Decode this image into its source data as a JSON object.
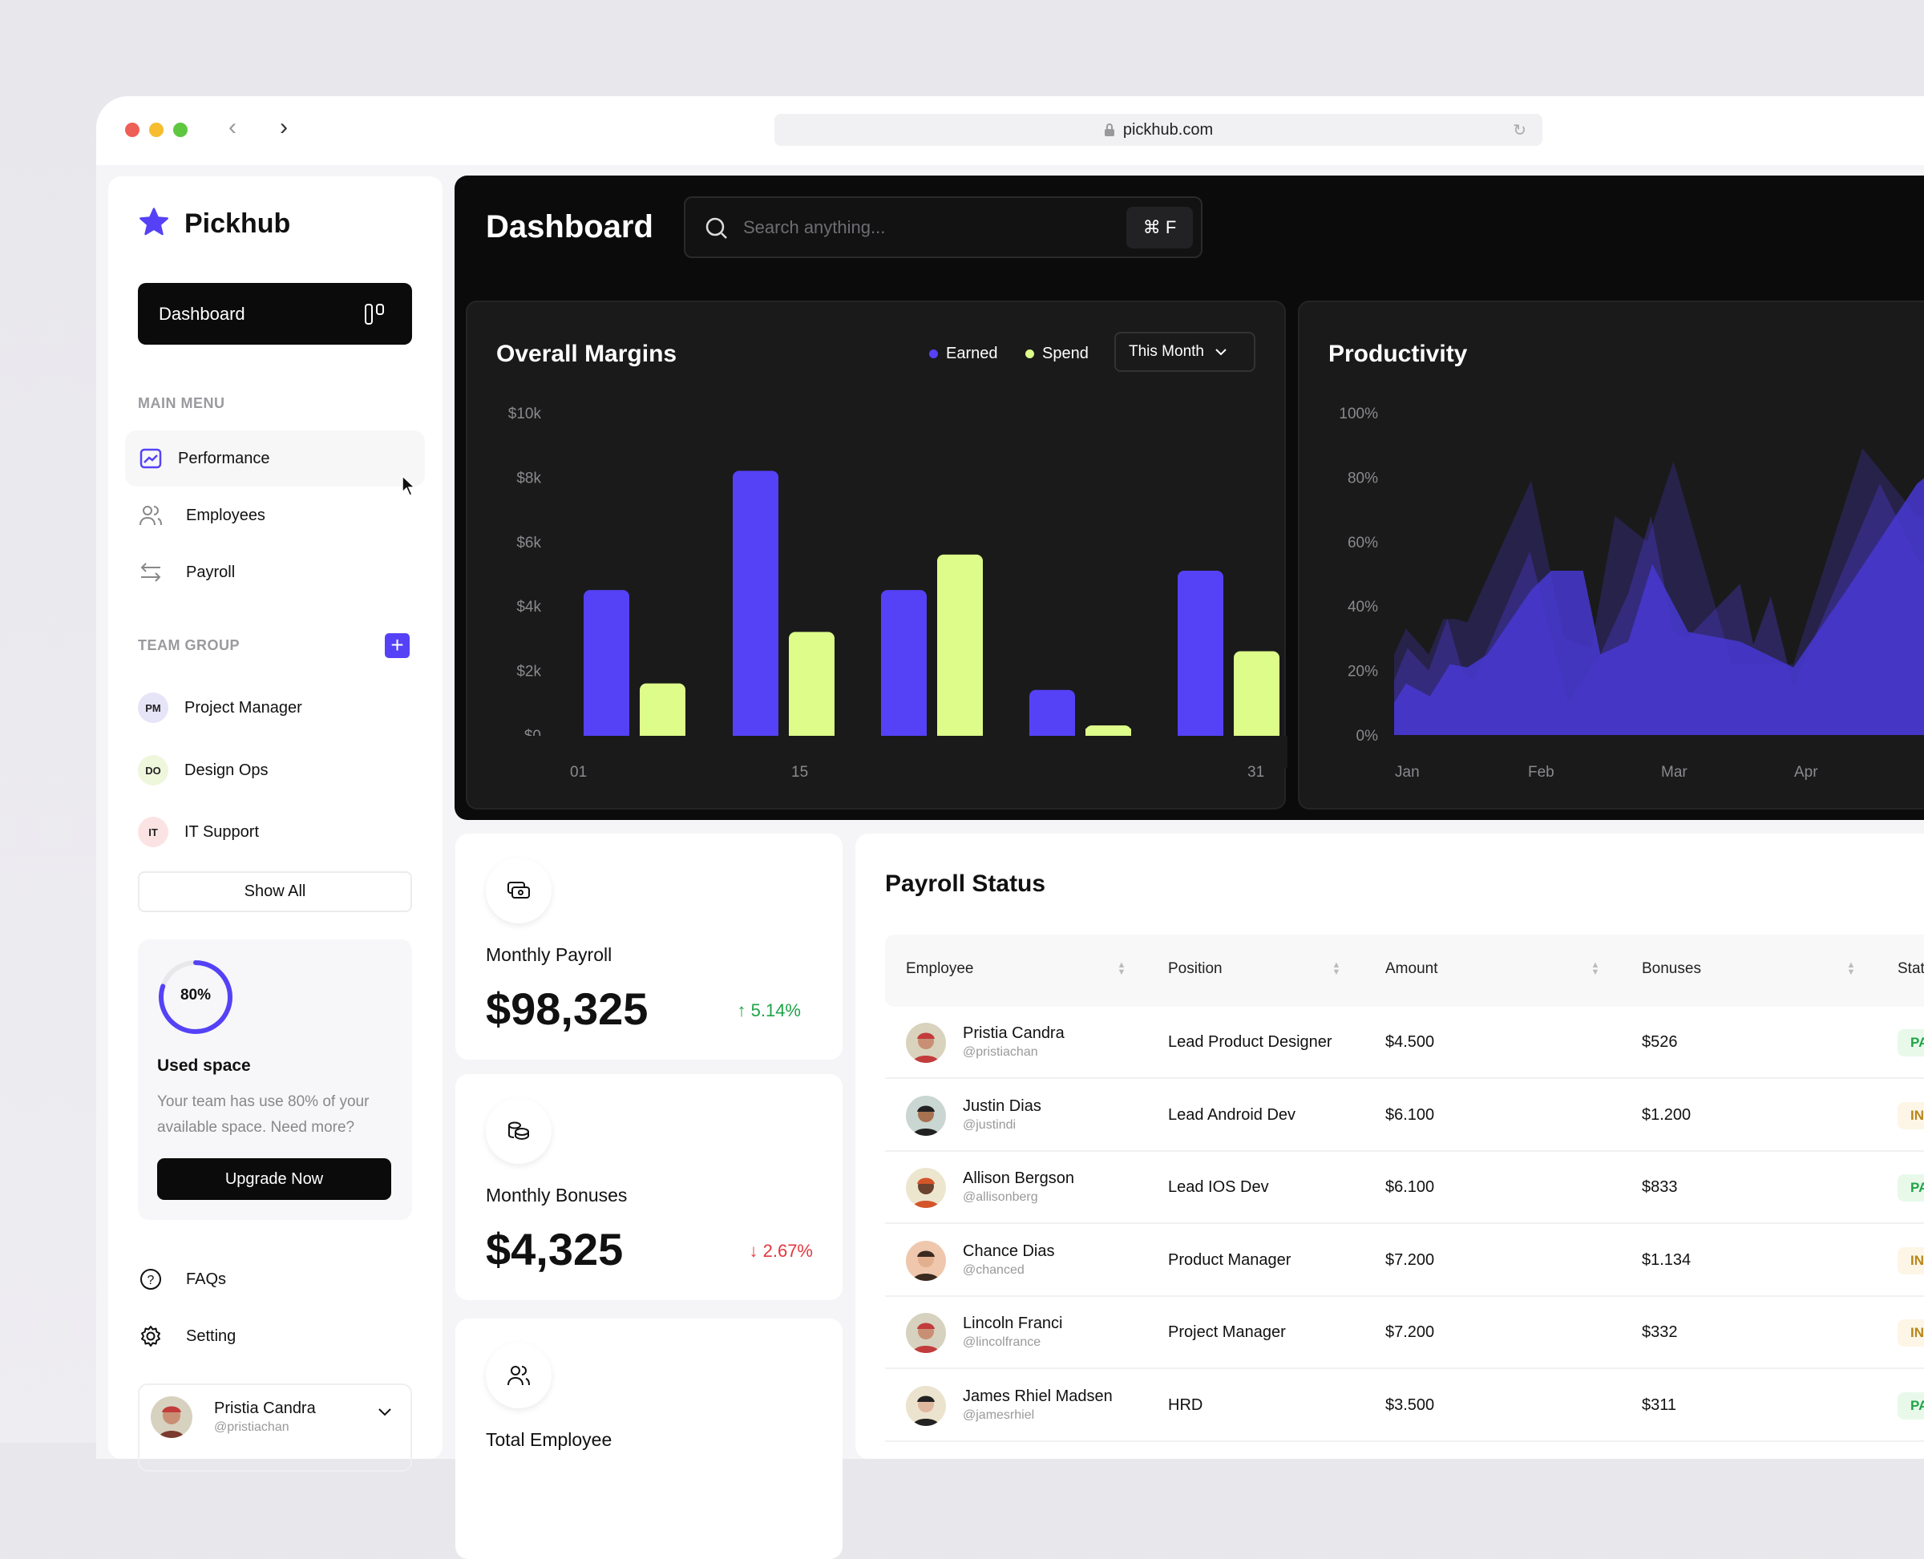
{
  "browser": {
    "url": "pickhub.com"
  },
  "sidebar": {
    "brand": "Pickhub",
    "dashboard_button": "Dashboard",
    "main_menu_title": "MAIN MENU",
    "main_menu": [
      {
        "label": "Performance",
        "icon": "chart-trend-icon",
        "active": true
      },
      {
        "label": "Employees",
        "icon": "users-icon"
      },
      {
        "label": "Payroll",
        "icon": "arrows-swap-icon"
      }
    ],
    "team_group_title": "TEAM GROUP",
    "teams": [
      {
        "initials": "PM",
        "label": "Project Manager",
        "color": "#e6e4f7"
      },
      {
        "initials": "DO",
        "label": "Design Ops",
        "color": "#eef7dc"
      },
      {
        "initials": "IT",
        "label": "IT Support",
        "color": "#fbe3e3"
      }
    ],
    "show_all": "Show All",
    "storage": {
      "percent_label": "80%",
      "percent": 80,
      "title": "Used space",
      "desc_line1": "Your team has use 80% of your",
      "desc_line2": "available space. Need more?",
      "button": "Upgrade Now"
    },
    "footer": [
      {
        "label": "FAQs",
        "icon": "help-circle-icon"
      },
      {
        "label": "Setting",
        "icon": "gear-icon"
      }
    ],
    "user": {
      "name": "Pristia Candra",
      "handle": "@pristiachan"
    }
  },
  "header": {
    "title": "Dashboard",
    "search_placeholder": "Search anything...",
    "shortcut": "⌘ F"
  },
  "margins": {
    "title": "Overall Margins",
    "legend": [
      {
        "name": "Earned",
        "color": "#5542f6"
      },
      {
        "name": "Spend",
        "color": "#ddfc8a"
      }
    ],
    "period": "This Month"
  },
  "productivity": {
    "title": "Productivity"
  },
  "chart_data": [
    {
      "type": "bar",
      "title": "Overall Margins",
      "y_ticks": [
        "$0",
        "$2k",
        "$4k",
        "$6k",
        "$8k",
        "$10k"
      ],
      "ylim": [
        0,
        10000
      ],
      "x_ticks": [
        "01",
        "15",
        "31"
      ],
      "series": [
        {
          "name": "Earned",
          "values": [
            4500,
            8200,
            4500,
            1400,
            5100
          ]
        },
        {
          "name": "Spend",
          "values": [
            1600,
            3200,
            5600,
            300,
            2600
          ]
        }
      ]
    },
    {
      "type": "area",
      "title": "Productivity",
      "y_ticks": [
        "0%",
        "20%",
        "40%",
        "60%",
        "80%",
        "100%"
      ],
      "ylim": [
        0,
        100
      ],
      "x_ticks": [
        "Jan",
        "Feb",
        "Mar",
        "Apr"
      ],
      "series": [
        {
          "points": [
            [
              0,
              25
            ],
            [
              0.09,
              33
            ],
            [
              0.26,
              25
            ],
            [
              0.37,
              36
            ],
            [
              0.46,
              36
            ],
            [
              0.55,
              35
            ],
            [
              1.03,
              79
            ],
            [
              1.28,
              30
            ],
            [
              1.48,
              27
            ],
            [
              1.66,
              68
            ],
            [
              1.9,
              60
            ],
            [
              2.1,
              85
            ],
            [
              2.54,
              22
            ],
            [
              3.0,
              22
            ],
            [
              3.52,
              89
            ],
            [
              3.93,
              68
            ],
            [
              4.3,
              60
            ]
          ]
        },
        {
          "points": [
            [
              0,
              17
            ],
            [
              0.1,
              27
            ],
            [
              0.26,
              20
            ],
            [
              0.4,
              36
            ],
            [
              0.52,
              19
            ],
            [
              0.6,
              17
            ],
            [
              1.02,
              57
            ],
            [
              1.31,
              10
            ],
            [
              1.55,
              25
            ],
            [
              1.76,
              44
            ],
            [
              1.93,
              68
            ],
            [
              2.1,
              32
            ],
            [
              2.2,
              30
            ],
            [
              2.6,
              47
            ],
            [
              2.7,
              28
            ],
            [
              2.83,
              43
            ],
            [
              3.0,
              15
            ],
            [
              3.65,
              78
            ],
            [
              3.93,
              55
            ],
            [
              4.3,
              40
            ]
          ]
        },
        {
          "points": [
            [
              0,
              10
            ],
            [
              0.09,
              16
            ],
            [
              0.27,
              12
            ],
            [
              0.42,
              22
            ],
            [
              0.55,
              21
            ],
            [
              0.7,
              25
            ],
            [
              1.03,
              45
            ],
            [
              1.18,
              51
            ],
            [
              1.42,
              51
            ],
            [
              1.55,
              25
            ],
            [
              1.76,
              29
            ],
            [
              1.94,
              53
            ],
            [
              2.21,
              32
            ],
            [
              2.6,
              29
            ],
            [
              3.0,
              21
            ],
            [
              3.4,
              45
            ],
            [
              3.93,
              78
            ],
            [
              4.3,
              90
            ]
          ]
        }
      ]
    }
  ],
  "stats": [
    {
      "label": "Monthly Payroll",
      "value": "$98,325",
      "change": "5.14%",
      "direction": "up",
      "icon": "money-icon"
    },
    {
      "label": "Monthly Bonuses",
      "value": "$4,325",
      "change": "2.67%",
      "direction": "down",
      "icon": "coins-icon"
    },
    {
      "label": "Total Employee",
      "icon": "users-icon"
    }
  ],
  "payroll": {
    "title": "Payroll Status",
    "columns": [
      "Employee",
      "Position",
      "Amount",
      "Bonuses",
      "Status"
    ],
    "rows": [
      {
        "name": "Pristia Candra",
        "handle": "@pristiachan",
        "position": "Lead Product Designer",
        "amount": "$4.500",
        "bonus": "$526",
        "status": "PA"
      },
      {
        "name": "Justin Dias",
        "handle": "@justindi",
        "position": "Lead Android Dev",
        "amount": "$6.100",
        "bonus": "$1.200",
        "status": "IN"
      },
      {
        "name": "Allison Bergson",
        "handle": "@allisonberg",
        "position": "Lead IOS Dev",
        "amount": "$6.100",
        "bonus": "$833",
        "status": "PA"
      },
      {
        "name": "Chance Dias",
        "handle": "@chanced",
        "position": "Product Manager",
        "amount": "$7.200",
        "bonus": "$1.134",
        "status": "IN"
      },
      {
        "name": "Lincoln Franci",
        "handle": "@lincolfrance",
        "position": "Project Manager",
        "amount": "$7.200",
        "bonus": "$332",
        "status": "IN"
      },
      {
        "name": "James Rhiel Madsen",
        "handle": "@jamesrhiel",
        "position": "HRD",
        "amount": "$3.500",
        "bonus": "$311",
        "status": "PA"
      }
    ]
  }
}
